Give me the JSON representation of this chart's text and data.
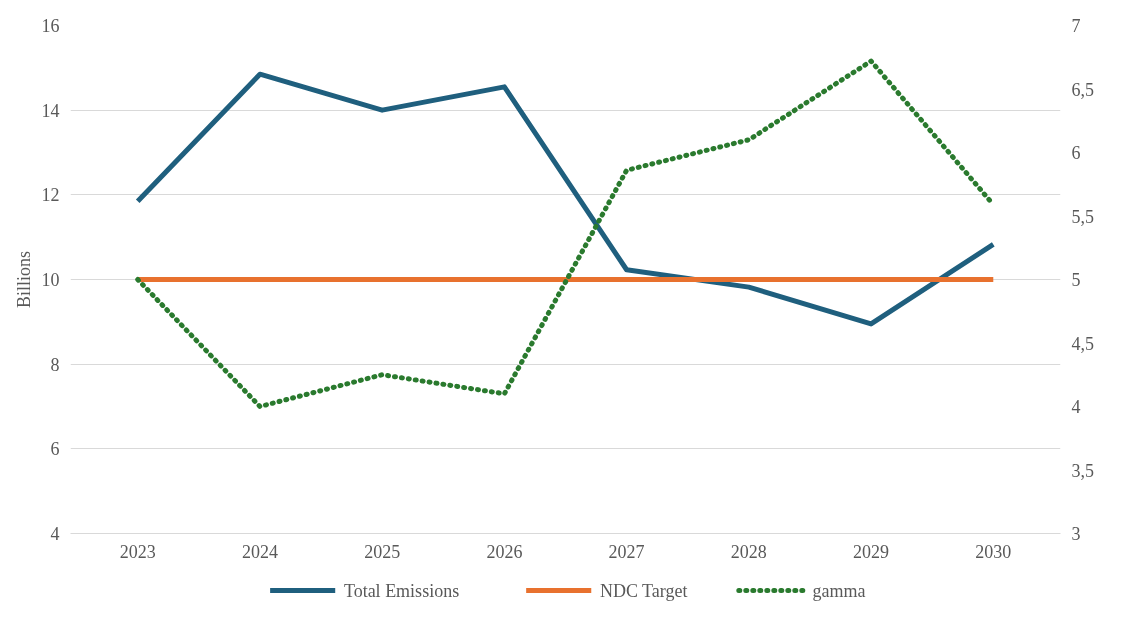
{
  "chart_data": {
    "type": "line",
    "ylabel": "Billions",
    "categories": [
      "2023",
      "2024",
      "2025",
      "2026",
      "2027",
      "2028",
      "2029",
      "2030"
    ],
    "series": [
      {
        "name": "Total Emissions",
        "color": "#1f5f7e",
        "values": [
          11.85,
          14.85,
          14.0,
          14.55,
          10.23,
          9.82,
          8.95,
          10.83
        ],
        "line_style": "solid"
      },
      {
        "name": "NDC Target",
        "color": "#e8712e",
        "values": [
          10,
          10,
          10,
          10,
          10,
          10,
          10,
          10
        ],
        "line_style": "solid"
      },
      {
        "name": "gamma",
        "color": "#2a7a2e",
        "values": [
          5.0,
          4.0,
          4.25,
          4.1,
          5.86,
          6.1,
          6.72,
          5.59
        ],
        "axis": "y2",
        "line_style": "dotted"
      }
    ],
    "ylim": [
      4,
      16
    ],
    "yticks": [
      4,
      6,
      8,
      10,
      12,
      14,
      16
    ],
    "y2lim": [
      3,
      7
    ],
    "y2ticks": [
      3,
      {
        "value": 3.5,
        "label": "3,5"
      },
      4,
      {
        "value": 4.5,
        "label": "4,5"
      },
      5,
      {
        "value": 5.5,
        "label": "5,5"
      },
      6,
      {
        "value": 6.5,
        "label": "6,5"
      },
      7
    ],
    "grid": "y",
    "legend": "bottom"
  }
}
